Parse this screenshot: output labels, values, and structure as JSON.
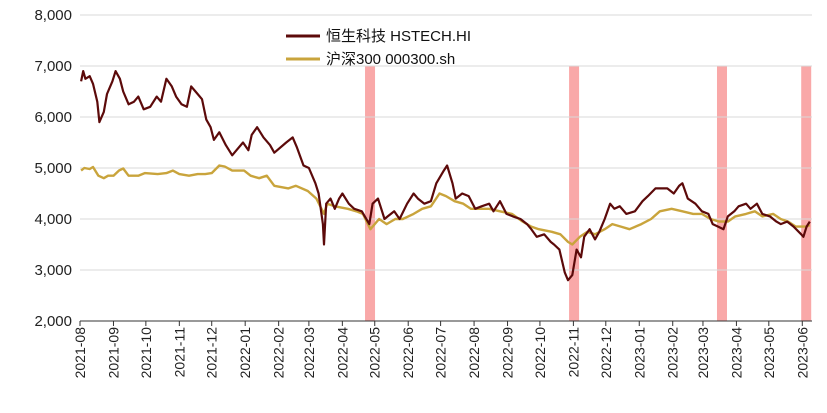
{
  "chart_data": {
    "type": "line",
    "title": "",
    "xlabel": "",
    "ylabel": "",
    "ylim": [
      2000,
      8000
    ],
    "yticks": [
      "2,000",
      "3,000",
      "4,000",
      "5,000",
      "6,000",
      "7,000",
      "8,000"
    ],
    "xticks": [
      "2021-08",
      "2021-09",
      "2021-10",
      "2021-11",
      "2021-12",
      "2022-01",
      "2022-02",
      "2022-03",
      "2022-04",
      "2022-05",
      "2022-06",
      "2022-07",
      "2022-08",
      "2022-09",
      "2022-10",
      "2022-11",
      "2022-12",
      "2023-01",
      "2023-02",
      "2023-03",
      "2023-04",
      "2023-05",
      "2023-06"
    ],
    "grid": "horizontal",
    "legend_position": "top-center",
    "shaded_periods": [
      {
        "start": "2022-04-22",
        "end": "2022-04-29"
      },
      {
        "start": "2022-10-28",
        "end": "2022-11-02"
      },
      {
        "start": "2023-03-14",
        "end": "2023-03-20"
      },
      {
        "start": "2023-05-31",
        "end": "2023-06-05"
      }
    ],
    "shade_color": "#f9a8a8",
    "series": [
      {
        "name": "恒生科技 HSTECH.HI",
        "color": "#5c0a0a",
        "points": [
          [
            "2021-08-02",
            6700
          ],
          [
            "2021-08-04",
            6900
          ],
          [
            "2021-08-06",
            6750
          ],
          [
            "2021-08-10",
            6800
          ],
          [
            "2021-08-13",
            6650
          ],
          [
            "2021-08-17",
            6300
          ],
          [
            "2021-08-19",
            5900
          ],
          [
            "2021-08-23",
            6100
          ],
          [
            "2021-08-26",
            6450
          ],
          [
            "2021-08-31",
            6700
          ],
          [
            "2021-09-03",
            6900
          ],
          [
            "2021-09-07",
            6750
          ],
          [
            "2021-09-10",
            6500
          ],
          [
            "2021-09-15",
            6250
          ],
          [
            "2021-09-20",
            6300
          ],
          [
            "2021-09-24",
            6400
          ],
          [
            "2021-09-29",
            6150
          ],
          [
            "2021-10-05",
            6200
          ],
          [
            "2021-10-11",
            6400
          ],
          [
            "2021-10-15",
            6300
          ],
          [
            "2021-10-20",
            6750
          ],
          [
            "2021-10-25",
            6600
          ],
          [
            "2021-10-29",
            6400
          ],
          [
            "2021-11-03",
            6250
          ],
          [
            "2021-11-08",
            6200
          ],
          [
            "2021-11-12",
            6600
          ],
          [
            "2021-11-16",
            6500
          ],
          [
            "2021-11-22",
            6350
          ],
          [
            "2021-11-26",
            5950
          ],
          [
            "2021-11-30",
            5800
          ],
          [
            "2021-12-03",
            5550
          ],
          [
            "2021-12-08",
            5700
          ],
          [
            "2021-12-14",
            5450
          ],
          [
            "2021-12-20",
            5250
          ],
          [
            "2021-12-24",
            5350
          ],
          [
            "2021-12-30",
            5500
          ],
          [
            "2022-01-04",
            5350
          ],
          [
            "2022-01-07",
            5650
          ],
          [
            "2022-01-12",
            5800
          ],
          [
            "2022-01-18",
            5600
          ],
          [
            "2022-01-24",
            5450
          ],
          [
            "2022-01-28",
            5300
          ],
          [
            "2022-02-08",
            5500
          ],
          [
            "2022-02-14",
            5600
          ],
          [
            "2022-02-18",
            5400
          ],
          [
            "2022-02-24",
            5050
          ],
          [
            "2022-03-01",
            5000
          ],
          [
            "2022-03-07",
            4700
          ],
          [
            "2022-03-10",
            4500
          ],
          [
            "2022-03-14",
            3900
          ],
          [
            "2022-03-15",
            3500
          ],
          [
            "2022-03-17",
            4300
          ],
          [
            "2022-03-21",
            4400
          ],
          [
            "2022-03-25",
            4200
          ],
          [
            "2022-03-29",
            4400
          ],
          [
            "2022-04-01",
            4500
          ],
          [
            "2022-04-07",
            4300
          ],
          [
            "2022-04-12",
            4200
          ],
          [
            "2022-04-19",
            4150
          ],
          [
            "2022-04-26",
            3900
          ],
          [
            "2022-04-29",
            4300
          ],
          [
            "2022-05-04",
            4400
          ],
          [
            "2022-05-10",
            4000
          ],
          [
            "2022-05-13",
            4050
          ],
          [
            "2022-05-19",
            4150
          ],
          [
            "2022-05-24",
            4000
          ],
          [
            "2022-05-31",
            4300
          ],
          [
            "2022-06-06",
            4500
          ],
          [
            "2022-06-10",
            4400
          ],
          [
            "2022-06-16",
            4300
          ],
          [
            "2022-06-22",
            4350
          ],
          [
            "2022-06-27",
            4700
          ],
          [
            "2022-07-04",
            4950
          ],
          [
            "2022-07-07",
            5050
          ],
          [
            "2022-07-12",
            4700
          ],
          [
            "2022-07-15",
            4400
          ],
          [
            "2022-07-21",
            4500
          ],
          [
            "2022-07-27",
            4450
          ],
          [
            "2022-08-02",
            4200
          ],
          [
            "2022-08-08",
            4250
          ],
          [
            "2022-08-15",
            4300
          ],
          [
            "2022-08-19",
            4150
          ],
          [
            "2022-08-25",
            4350
          ],
          [
            "2022-08-31",
            4100
          ],
          [
            "2022-09-06",
            4050
          ],
          [
            "2022-09-13",
            4000
          ],
          [
            "2022-09-19",
            3900
          ],
          [
            "2022-09-23",
            3800
          ],
          [
            "2022-09-28",
            3650
          ],
          [
            "2022-10-05",
            3700
          ],
          [
            "2022-10-11",
            3550
          ],
          [
            "2022-10-14",
            3500
          ],
          [
            "2022-10-19",
            3400
          ],
          [
            "2022-10-24",
            2950
          ],
          [
            "2022-10-27",
            2800
          ],
          [
            "2022-10-31",
            2900
          ],
          [
            "2022-11-04",
            3400
          ],
          [
            "2022-11-08",
            3250
          ],
          [
            "2022-11-11",
            3650
          ],
          [
            "2022-11-16",
            3800
          ],
          [
            "2022-11-21",
            3600
          ],
          [
            "2022-11-25",
            3750
          ],
          [
            "2022-11-30",
            4000
          ],
          [
            "2022-12-05",
            4300
          ],
          [
            "2022-12-09",
            4200
          ],
          [
            "2022-12-14",
            4250
          ],
          [
            "2022-12-20",
            4100
          ],
          [
            "2022-12-28",
            4150
          ],
          [
            "2023-01-04",
            4350
          ],
          [
            "2023-01-09",
            4450
          ],
          [
            "2023-01-16",
            4600
          ],
          [
            "2023-01-27",
            4600
          ],
          [
            "2023-02-02",
            4500
          ],
          [
            "2023-02-07",
            4650
          ],
          [
            "2023-02-10",
            4700
          ],
          [
            "2023-02-15",
            4400
          ],
          [
            "2023-02-22",
            4300
          ],
          [
            "2023-02-28",
            4150
          ],
          [
            "2023-03-06",
            4100
          ],
          [
            "2023-03-10",
            3900
          ],
          [
            "2023-03-15",
            3850
          ],
          [
            "2023-03-20",
            3800
          ],
          [
            "2023-03-24",
            4050
          ],
          [
            "2023-03-30",
            4150
          ],
          [
            "2023-04-03",
            4250
          ],
          [
            "2023-04-10",
            4300
          ],
          [
            "2023-04-14",
            4200
          ],
          [
            "2023-04-20",
            4300
          ],
          [
            "2023-04-25",
            4100
          ],
          [
            "2023-05-02",
            4050
          ],
          [
            "2023-05-08",
            3950
          ],
          [
            "2023-05-12",
            3900
          ],
          [
            "2023-05-18",
            3950
          ],
          [
            "2023-05-24",
            3850
          ],
          [
            "2023-05-31",
            3700
          ],
          [
            "2023-06-02",
            3650
          ],
          [
            "2023-06-05",
            3850
          ],
          [
            "2023-06-08",
            3950
          ]
        ]
      },
      {
        "name": "沪深300 000300.sh",
        "color": "#c9a43c",
        "points": [
          [
            "2021-08-02",
            4950
          ],
          [
            "2021-08-05",
            5000
          ],
          [
            "2021-08-10",
            4980
          ],
          [
            "2021-08-13",
            5020
          ],
          [
            "2021-08-18",
            4850
          ],
          [
            "2021-08-23",
            4800
          ],
          [
            "2021-08-27",
            4850
          ],
          [
            "2021-09-01",
            4850
          ],
          [
            "2021-09-06",
            4950
          ],
          [
            "2021-09-10",
            4990
          ],
          [
            "2021-09-15",
            4850
          ],
          [
            "2021-09-24",
            4850
          ],
          [
            "2021-09-30",
            4900
          ],
          [
            "2021-10-12",
            4880
          ],
          [
            "2021-10-20",
            4900
          ],
          [
            "2021-10-26",
            4950
          ],
          [
            "2021-11-01",
            4880
          ],
          [
            "2021-11-10",
            4850
          ],
          [
            "2021-11-18",
            4880
          ],
          [
            "2021-11-25",
            4880
          ],
          [
            "2021-12-01",
            4900
          ],
          [
            "2021-12-08",
            5050
          ],
          [
            "2021-12-13",
            5030
          ],
          [
            "2021-12-20",
            4950
          ],
          [
            "2021-12-31",
            4950
          ],
          [
            "2022-01-06",
            4850
          ],
          [
            "2022-01-14",
            4800
          ],
          [
            "2022-01-21",
            4850
          ],
          [
            "2022-01-28",
            4650
          ],
          [
            "2022-02-10",
            4600
          ],
          [
            "2022-02-17",
            4650
          ],
          [
            "2022-02-28",
            4550
          ],
          [
            "2022-03-08",
            4400
          ],
          [
            "2022-03-15",
            4100
          ],
          [
            "2022-03-18",
            4300
          ],
          [
            "2022-03-25",
            4250
          ],
          [
            "2022-04-06",
            4200
          ],
          [
            "2022-04-14",
            4150
          ],
          [
            "2022-04-20",
            4100
          ],
          [
            "2022-04-27",
            3800
          ],
          [
            "2022-05-05",
            4000
          ],
          [
            "2022-05-12",
            3900
          ],
          [
            "2022-05-20",
            4000
          ],
          [
            "2022-05-27",
            4000
          ],
          [
            "2022-06-06",
            4100
          ],
          [
            "2022-06-14",
            4200
          ],
          [
            "2022-06-22",
            4250
          ],
          [
            "2022-06-30",
            4500
          ],
          [
            "2022-07-06",
            4450
          ],
          [
            "2022-07-14",
            4350
          ],
          [
            "2022-07-22",
            4300
          ],
          [
            "2022-07-29",
            4200
          ],
          [
            "2022-08-05",
            4200
          ],
          [
            "2022-08-15",
            4200
          ],
          [
            "2022-08-25",
            4150
          ],
          [
            "2022-09-05",
            4100
          ],
          [
            "2022-09-15",
            3950
          ],
          [
            "2022-09-23",
            3850
          ],
          [
            "2022-09-30",
            3800
          ],
          [
            "2022-10-12",
            3750
          ],
          [
            "2022-10-20",
            3700
          ],
          [
            "2022-10-27",
            3550
          ],
          [
            "2022-10-31",
            3500
          ],
          [
            "2022-11-07",
            3650
          ],
          [
            "2022-11-14",
            3750
          ],
          [
            "2022-11-21",
            3700
          ],
          [
            "2022-11-30",
            3800
          ],
          [
            "2022-12-07",
            3900
          ],
          [
            "2022-12-15",
            3850
          ],
          [
            "2022-12-23",
            3800
          ],
          [
            "2023-01-03",
            3900
          ],
          [
            "2023-01-12",
            4000
          ],
          [
            "2023-01-20",
            4150
          ],
          [
            "2023-01-31",
            4200
          ],
          [
            "2023-02-10",
            4150
          ],
          [
            "2023-02-20",
            4100
          ],
          [
            "2023-02-28",
            4100
          ],
          [
            "2023-03-08",
            4000
          ],
          [
            "2023-03-16",
            3950
          ],
          [
            "2023-03-24",
            3950
          ],
          [
            "2023-03-31",
            4050
          ],
          [
            "2023-04-10",
            4100
          ],
          [
            "2023-04-18",
            4150
          ],
          [
            "2023-04-25",
            4050
          ],
          [
            "2023-05-05",
            4100
          ],
          [
            "2023-05-12",
            4000
          ],
          [
            "2023-05-19",
            3950
          ],
          [
            "2023-05-26",
            3850
          ],
          [
            "2023-05-31",
            3850
          ],
          [
            "2023-06-05",
            3850
          ],
          [
            "2023-06-08",
            3880
          ]
        ]
      }
    ]
  }
}
